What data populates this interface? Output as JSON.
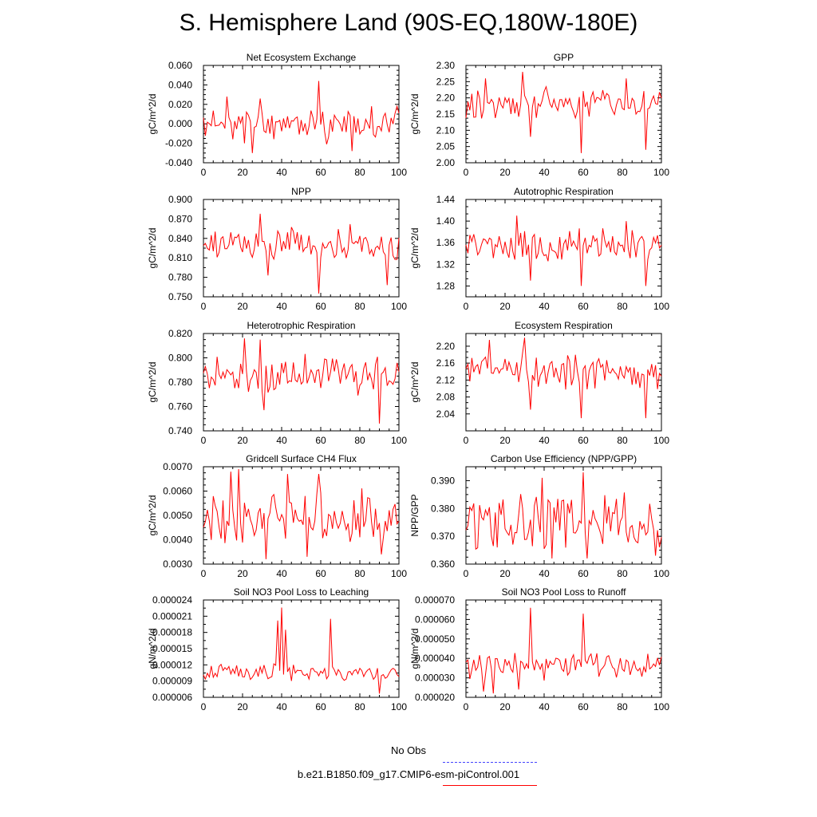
{
  "title": "S. Hemisphere Land (90S-EQ,180W-180E)",
  "colors": {
    "series": "#ff0000",
    "obs": "#4444ff",
    "axis": "#000000"
  },
  "legend": {
    "obs_label": "No Obs",
    "model_label": "b.e21.B1850.f09_g17.CMIP6-esm-piControl.001"
  },
  "chart_data": [
    {
      "type": "line",
      "title": "Net Ecosystem Exchange",
      "ylabel": "gC/m^2/d",
      "xlim": [
        0,
        100
      ],
      "ylim": [
        -0.04,
        0.06
      ],
      "xticks": [
        0,
        20,
        40,
        60,
        80,
        100
      ],
      "yticks": [
        "-0.040",
        "-0.020",
        "0.000",
        "0.020",
        "0.040",
        "0.060"
      ],
      "yticks_val": [
        -0.04,
        -0.02,
        0.0,
        0.02,
        0.04,
        0.06
      ],
      "minor_y": 4,
      "base": 0.0,
      "amp": 0.011,
      "seed": 11,
      "peaks": [
        [
          12,
          0.028
        ],
        [
          21,
          -0.02
        ],
        [
          25,
          -0.03
        ],
        [
          29,
          0.026
        ],
        [
          59,
          0.044
        ],
        [
          63,
          -0.021
        ],
        [
          76,
          -0.028
        ],
        [
          86,
          0.018
        ],
        [
          99,
          0.018
        ]
      ]
    },
    {
      "type": "line",
      "title": "GPP",
      "ylabel": "gC/m^2/d",
      "xlim": [
        0,
        100
      ],
      "ylim": [
        2.0,
        2.3
      ],
      "xticks": [
        0,
        20,
        40,
        60,
        80,
        100
      ],
      "yticks": [
        "2.00",
        "2.05",
        "2.10",
        "2.15",
        "2.20",
        "2.25",
        "2.30"
      ],
      "yticks_val": [
        2.0,
        2.05,
        2.1,
        2.15,
        2.2,
        2.25,
        2.3
      ],
      "minor_y": 4,
      "base": 2.185,
      "amp": 0.035,
      "seed": 22,
      "peaks": [
        [
          10,
          2.26
        ],
        [
          29,
          2.28
        ],
        [
          33,
          2.08
        ],
        [
          59,
          2.03
        ],
        [
          82,
          2.26
        ],
        [
          92,
          2.04
        ]
      ]
    },
    {
      "type": "line",
      "title": "NPP",
      "ylabel": "gC/m^2/d",
      "xlim": [
        0,
        100
      ],
      "ylim": [
        0.75,
        0.9
      ],
      "xticks": [
        0,
        20,
        40,
        60,
        80,
        100
      ],
      "yticks": [
        "0.750",
        "0.780",
        "0.810",
        "0.840",
        "0.870",
        "0.900"
      ],
      "yticks_val": [
        0.75,
        0.78,
        0.81,
        0.84,
        0.87,
        0.9
      ],
      "minor_y": 2,
      "base": 0.83,
      "amp": 0.018,
      "seed": 33,
      "peaks": [
        [
          29,
          0.878
        ],
        [
          33,
          0.783
        ],
        [
          59,
          0.755
        ],
        [
          75,
          0.862
        ],
        [
          94,
          0.768
        ]
      ]
    },
    {
      "type": "line",
      "title": "Autotrophic Respiration",
      "ylabel": "gC/m^2/d",
      "xlim": [
        0,
        100
      ],
      "ylim": [
        1.26,
        1.44
      ],
      "xticks": [
        0,
        20,
        40,
        60,
        80,
        100
      ],
      "yticks": [
        "1.28",
        "1.32",
        "1.36",
        "1.40",
        "1.44"
      ],
      "yticks_val": [
        1.28,
        1.32,
        1.36,
        1.4,
        1.44
      ],
      "minor_y": 3,
      "base": 1.355,
      "amp": 0.022,
      "seed": 44,
      "peaks": [
        [
          26,
          1.41
        ],
        [
          33,
          1.29
        ],
        [
          59,
          1.28
        ],
        [
          82,
          1.4
        ],
        [
          92,
          1.28
        ]
      ]
    },
    {
      "type": "line",
      "title": "Heterotrophic Respiration",
      "ylabel": "gC/m^2/d",
      "xlim": [
        0,
        100
      ],
      "ylim": [
        0.74,
        0.82
      ],
      "xticks": [
        0,
        20,
        40,
        60,
        80,
        100
      ],
      "yticks": [
        "0.740",
        "0.760",
        "0.780",
        "0.800",
        "0.820"
      ],
      "yticks_val": [
        0.74,
        0.76,
        0.78,
        0.8,
        0.82
      ],
      "minor_y": 4,
      "base": 0.786,
      "amp": 0.012,
      "seed": 55,
      "peaks": [
        [
          21,
          0.816
        ],
        [
          29,
          0.815
        ],
        [
          31,
          0.757
        ],
        [
          62,
          0.799
        ],
        [
          90,
          0.746
        ]
      ]
    },
    {
      "type": "line",
      "title": "Ecosystem Respiration",
      "ylabel": "gC/m^2/d",
      "xlim": [
        0,
        100
      ],
      "ylim": [
        2.0,
        2.23
      ],
      "xticks": [
        0,
        20,
        40,
        60,
        80,
        100
      ],
      "yticks": [
        "2.04",
        "2.08",
        "2.12",
        "2.16",
        "2.20"
      ],
      "yticks_val": [
        2.04,
        2.08,
        2.12,
        2.16,
        2.2
      ],
      "minor_y": 3,
      "base": 2.14,
      "amp": 0.03,
      "seed": 66,
      "peaks": [
        [
          12,
          2.215
        ],
        [
          30,
          2.22
        ],
        [
          33,
          2.05
        ],
        [
          59,
          2.03
        ],
        [
          92,
          2.03
        ]
      ]
    },
    {
      "type": "line",
      "title": "Gridcell Surface CH4 Flux",
      "ylabel": "gC/m^2/d",
      "xlim": [
        0,
        100
      ],
      "ylim": [
        0.003,
        0.007
      ],
      "xticks": [
        0,
        20,
        40,
        60,
        80,
        100
      ],
      "yticks": [
        "0.0030",
        "0.0040",
        "0.0050",
        "0.0060",
        "0.0070"
      ],
      "yticks_val": [
        0.003,
        0.004,
        0.005,
        0.006,
        0.007
      ],
      "minor_y": 4,
      "base": 0.0049,
      "amp": 0.0008,
      "seed": 77,
      "peaks": [
        [
          14,
          0.0068
        ],
        [
          18,
          0.0069
        ],
        [
          32,
          0.0032
        ],
        [
          43,
          0.0067
        ],
        [
          53,
          0.0033
        ],
        [
          59,
          0.0067
        ],
        [
          91,
          0.0034
        ]
      ]
    },
    {
      "type": "line",
      "title": "Carbon Use Efficiency (NPP/GPP)",
      "ylabel": "NPP/GPP",
      "xlim": [
        0,
        100
      ],
      "ylim": [
        0.36,
        0.395
      ],
      "xticks": [
        0,
        20,
        40,
        60,
        80,
        100
      ],
      "yticks": [
        "0.360",
        "0.370",
        "0.380",
        "0.390"
      ],
      "yticks_val": [
        0.36,
        0.37,
        0.38,
        0.39
      ],
      "minor_y": 4,
      "base": 0.375,
      "amp": 0.007,
      "seed": 88,
      "peaks": [
        [
          39,
          0.391
        ],
        [
          60,
          0.393
        ],
        [
          62,
          0.362
        ],
        [
          44,
          0.362
        ],
        [
          97,
          0.363
        ]
      ]
    },
    {
      "type": "line",
      "title": "Soil NO3 Pool Loss to Leaching",
      "ylabel": "gN/m^2/d",
      "xlim": [
        0,
        100
      ],
      "ylim": [
        6e-06,
        2.4e-05
      ],
      "xticks": [
        0,
        20,
        40,
        60,
        80,
        100
      ],
      "yticks": [
        "0.000006",
        "0.000009",
        "0.000012",
        "0.000015",
        "0.000018",
        "0.000021",
        "0.000024"
      ],
      "yticks_val": [
        6e-06,
        9e-06,
        1.2e-05,
        1.5e-05,
        1.8e-05,
        2.1e-05,
        2.4e-05
      ],
      "minor_y": 2,
      "base": 1.05e-05,
      "amp": 1.2e-06,
      "seed": 99,
      "peaks": [
        [
          38,
          2.02e-05
        ],
        [
          40,
          2.26e-05
        ],
        [
          42,
          1.85e-05
        ],
        [
          65,
          2.05e-05
        ],
        [
          90,
          6.7e-06
        ],
        [
          46,
          1.2e-05
        ]
      ]
    },
    {
      "type": "line",
      "title": "Soil NO3 Pool Loss to Runoff",
      "ylabel": "gN/m^2/d",
      "xlim": [
        0,
        100
      ],
      "ylim": [
        2e-05,
        7e-05
      ],
      "xticks": [
        0,
        20,
        40,
        60,
        80,
        100
      ],
      "yticks": [
        "0.000020",
        "0.000030",
        "0.000040",
        "0.000050",
        "0.000060",
        "0.000070"
      ],
      "yticks_val": [
        2e-05,
        3e-05,
        4e-05,
        5e-05,
        6e-05,
        7e-05
      ],
      "minor_y": 4,
      "base": 3.6e-05,
      "amp": 5e-06,
      "seed": 111,
      "peaks": [
        [
          33,
          6.6e-05
        ],
        [
          60,
          6.3e-05
        ],
        [
          9,
          2.3e-05
        ],
        [
          14,
          2.2e-05
        ],
        [
          27,
          2.4e-05
        ]
      ]
    }
  ]
}
